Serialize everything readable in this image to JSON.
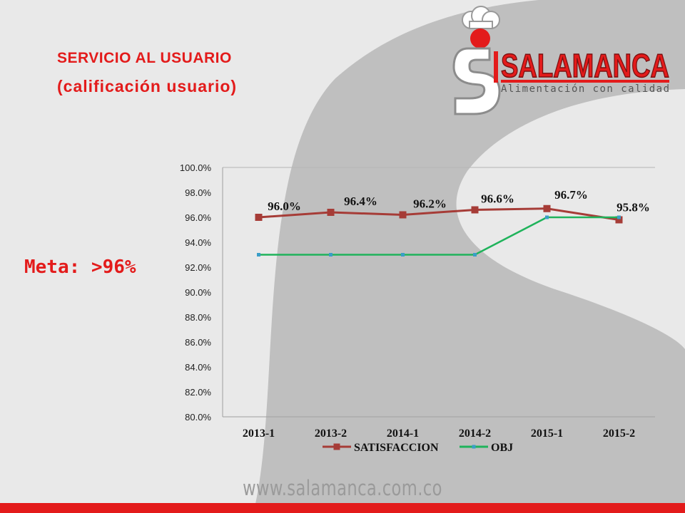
{
  "slide": {
    "title_line1": "SERVICIO AL USUARIO",
    "title_line2": "(calificación  usuario)",
    "goal_text": "Meta: >96%",
    "website": "www.salamanca.com.co",
    "colors": {
      "accent_red": "#e31b1b",
      "background": "#e9e9e9",
      "bg_shape": "#bfbfbf"
    }
  },
  "logo": {
    "name": "SALAMANCA",
    "tagline": "Alimentación con calidad",
    "icon": "chef-hat-s-logo-icon"
  },
  "chart_data": {
    "type": "line",
    "categories": [
      "2013-1",
      "2013-2",
      "2014-1",
      "2014-2",
      "2015-1",
      "2015-2"
    ],
    "y_ticks": [
      "100.0%",
      "98.0%",
      "96.0%",
      "94.0%",
      "92.0%",
      "90.0%",
      "88.0%",
      "86.0%",
      "84.0%",
      "82.0%",
      "80.0%"
    ],
    "ylim": [
      80,
      100
    ],
    "grid": "top-line-only",
    "legend_position": "bottom",
    "series": [
      {
        "name": "SATISFACCION",
        "values": [
          96.0,
          96.4,
          96.2,
          96.6,
          96.7,
          95.8
        ],
        "labels": [
          "96.0%",
          "96.4%",
          "96.2%",
          "96.6%",
          "96.7%",
          "95.8%"
        ],
        "color": "#a63c37",
        "marker": "square"
      },
      {
        "name": "OBJ",
        "values": [
          93.0,
          93.0,
          93.0,
          93.0,
          96.0,
          96.0
        ],
        "color": "#1fb35b",
        "marker_color": "#3a9ec7",
        "marker": "small-square"
      }
    ]
  }
}
